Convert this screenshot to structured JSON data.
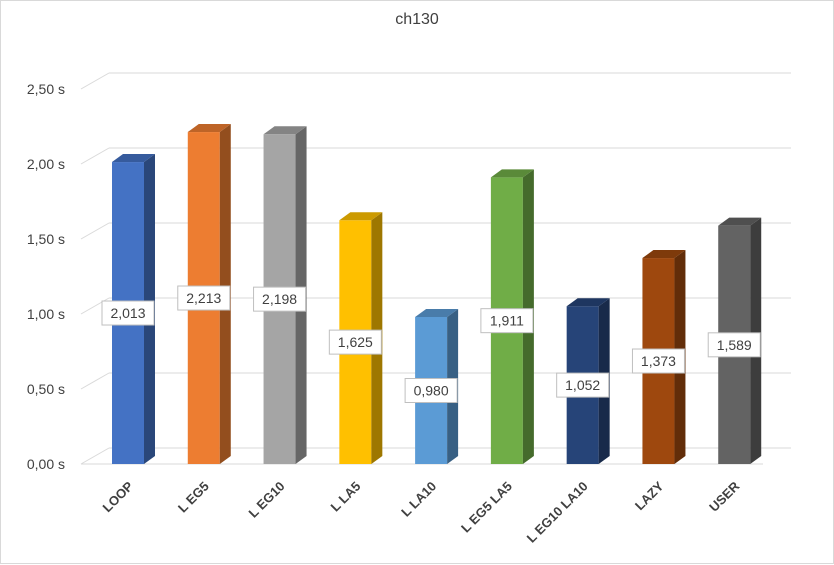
{
  "chart_data": {
    "type": "bar",
    "style": "3d-column",
    "title": "ch130",
    "xlabel": "",
    "ylabel": "",
    "ylim": [
      0,
      2.5
    ],
    "ytick_step": 0.5,
    "ytick_labels": [
      "0,00 s",
      "0,50 s",
      "1,00 s",
      "1,50 s",
      "2,00 s",
      "2,50 s"
    ],
    "grid": true,
    "legend": "none",
    "categories": [
      "LOOP",
      "L EG5",
      "L EG10",
      "L LA5",
      "L LA10",
      "L EG5 LA5",
      "L EG10 LA10",
      "LAZY",
      "USER"
    ],
    "values": [
      2.013,
      2.213,
      2.198,
      1.625,
      0.98,
      1.911,
      1.052,
      1.373,
      1.589
    ],
    "data_labels": [
      "2,013",
      "2,213",
      "2,198",
      "1,625",
      "0,980",
      "1,911",
      "1,052",
      "1,373",
      "1,589"
    ],
    "colors": [
      "#4472C4",
      "#ED7D31",
      "#A5A5A5",
      "#FFC000",
      "#5B9BD5",
      "#70AD47",
      "#264478",
      "#9E480E",
      "#636363"
    ]
  }
}
